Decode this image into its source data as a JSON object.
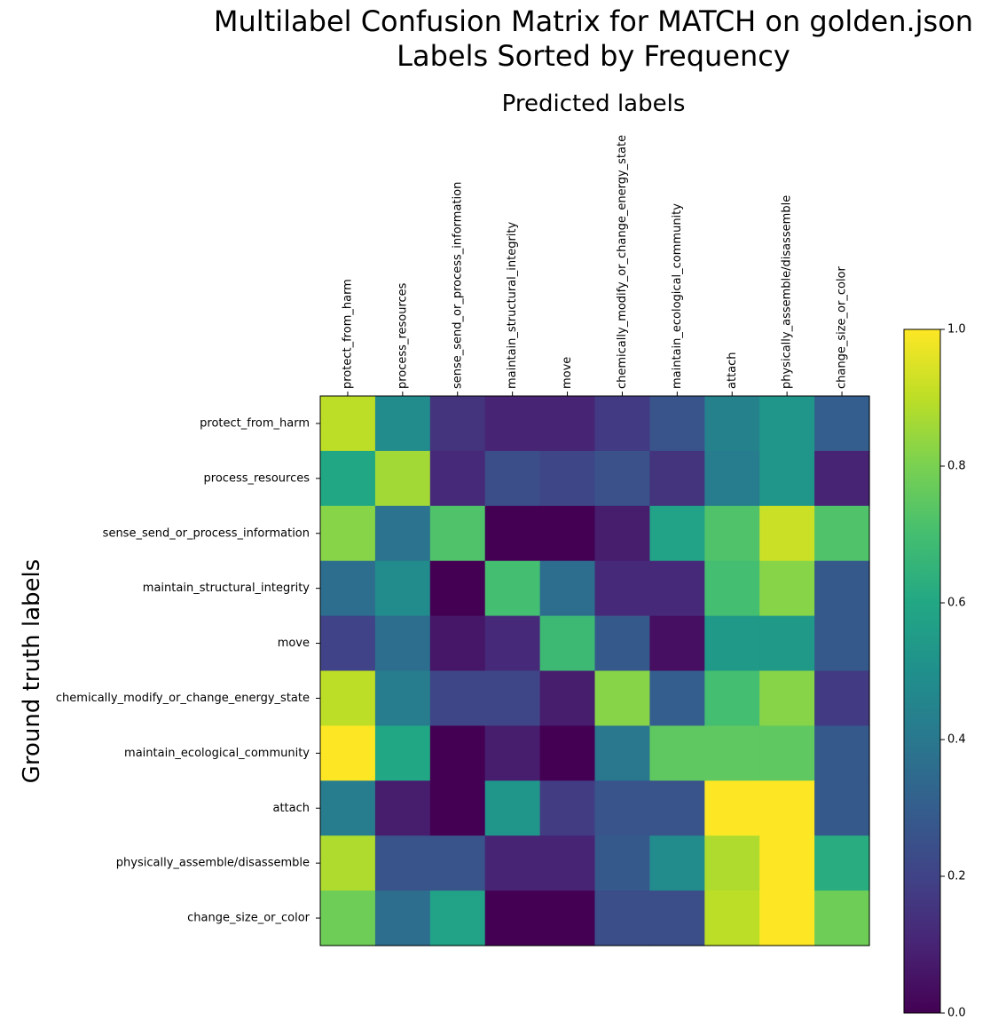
{
  "chart_data": {
    "type": "heatmap",
    "title": [
      "Multilabel Confusion Matrix for MATCH on golden.json",
      "Labels Sorted by Frequency"
    ],
    "xlabel": "Predicted labels",
    "ylabel": "Ground truth labels",
    "x_categories": [
      "protect_from_harm",
      "process_resources",
      "sense_send_or_process_information",
      "maintain_structural_integrity",
      "move",
      "chemically_modify_or_change_energy_state",
      "maintain_ecological_community",
      "attach",
      "physically_assemble/disassemble",
      "change_size_or_color"
    ],
    "y_categories": [
      "protect_from_harm",
      "process_resources",
      "sense_send_or_process_information",
      "maintain_structural_integrity",
      "move",
      "chemically_modify_or_change_energy_state",
      "maintain_ecological_community",
      "attach",
      "physically_assemble/disassemble",
      "change_size_or_color"
    ],
    "values": [
      [
        0.9,
        0.48,
        0.15,
        0.1,
        0.1,
        0.17,
        0.26,
        0.44,
        0.52,
        0.3
      ],
      [
        0.6,
        0.86,
        0.12,
        0.24,
        0.21,
        0.25,
        0.15,
        0.42,
        0.52,
        0.1
      ],
      [
        0.82,
        0.38,
        0.72,
        0.0,
        0.0,
        0.08,
        0.58,
        0.72,
        0.92,
        0.72
      ],
      [
        0.36,
        0.48,
        0.0,
        0.7,
        0.36,
        0.12,
        0.12,
        0.7,
        0.82,
        0.28
      ],
      [
        0.2,
        0.36,
        0.06,
        0.12,
        0.68,
        0.28,
        0.04,
        0.54,
        0.54,
        0.28
      ],
      [
        0.9,
        0.42,
        0.21,
        0.21,
        0.08,
        0.82,
        0.3,
        0.7,
        0.82,
        0.17
      ],
      [
        1.0,
        0.6,
        0.0,
        0.08,
        0.0,
        0.4,
        0.75,
        0.75,
        0.75,
        0.28
      ],
      [
        0.42,
        0.08,
        0.0,
        0.52,
        0.18,
        0.26,
        0.26,
        1.0,
        1.0,
        0.28
      ],
      [
        0.88,
        0.26,
        0.26,
        0.1,
        0.1,
        0.28,
        0.48,
        0.88,
        1.0,
        0.62
      ],
      [
        0.78,
        0.36,
        0.58,
        0.0,
        0.0,
        0.24,
        0.24,
        0.9,
        1.0,
        0.78
      ]
    ],
    "colormap": "viridis",
    "vmin": 0.0,
    "vmax": 1.0,
    "colorbar_ticks": [
      "0.0",
      "0.2",
      "0.4",
      "0.6",
      "0.8",
      "1.0"
    ],
    "grid": false
  }
}
